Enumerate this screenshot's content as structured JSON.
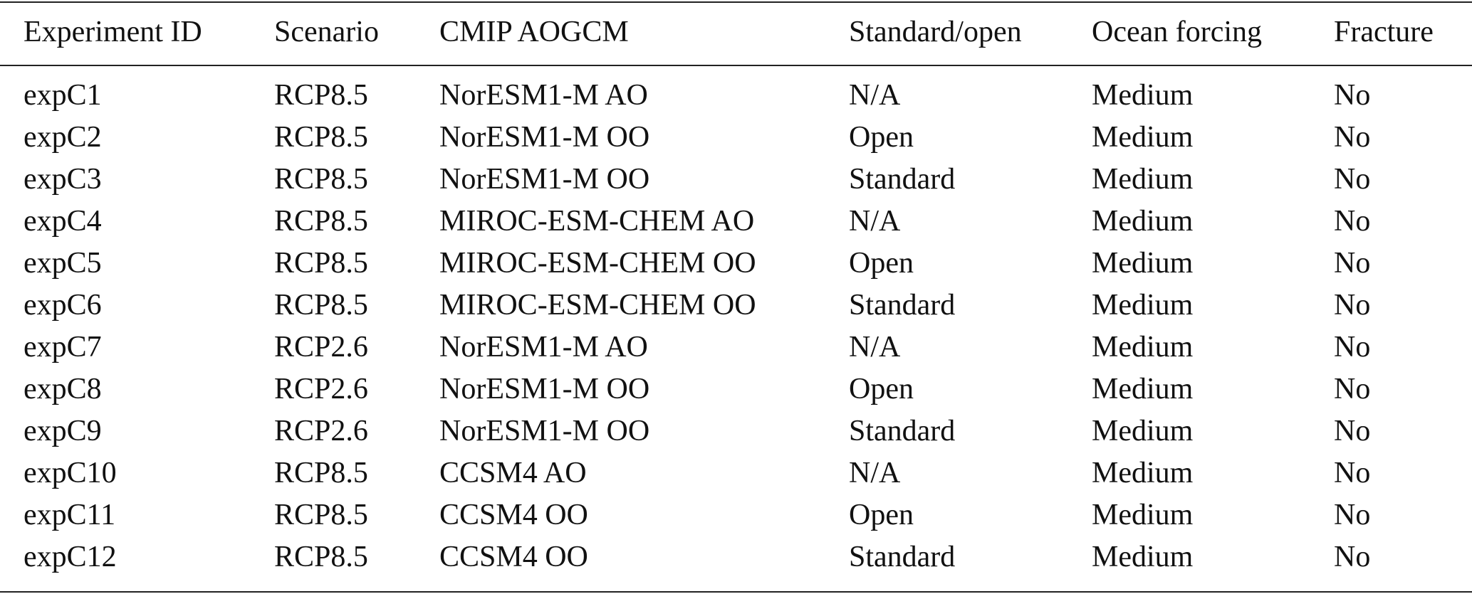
{
  "table": {
    "header": [
      "Experiment ID",
      "Scenario",
      "CMIP AOGCM",
      "Standard/open",
      "Ocean forcing",
      "Fracture"
    ],
    "rows": [
      [
        "expC1",
        "RCP8.5",
        "NorESM1-M AO",
        "N/A",
        "Medium",
        "No"
      ],
      [
        "expC2",
        "RCP8.5",
        "NorESM1-M OO",
        "Open",
        "Medium",
        "No"
      ],
      [
        "expC3",
        "RCP8.5",
        "NorESM1-M OO",
        "Standard",
        "Medium",
        "No"
      ],
      [
        "expC4",
        "RCP8.5",
        "MIROC-ESM-CHEM AO",
        "N/A",
        "Medium",
        "No"
      ],
      [
        "expC5",
        "RCP8.5",
        "MIROC-ESM-CHEM OO",
        "Open",
        "Medium",
        "No"
      ],
      [
        "expC6",
        "RCP8.5",
        "MIROC-ESM-CHEM OO",
        "Standard",
        "Medium",
        "No"
      ],
      [
        "expC7",
        "RCP2.6",
        "NorESM1-M AO",
        "N/A",
        "Medium",
        "No"
      ],
      [
        "expC8",
        "RCP2.6",
        "NorESM1-M OO",
        "Open",
        "Medium",
        "No"
      ],
      [
        "expC9",
        "RCP2.6",
        "NorESM1-M OO",
        "Standard",
        "Medium",
        "No"
      ],
      [
        "expC10",
        "RCP8.5",
        "CCSM4 AO",
        "N/A",
        "Medium",
        "No"
      ],
      [
        "expC11",
        "RCP8.5",
        "CCSM4 OO",
        "Open",
        "Medium",
        "No"
      ],
      [
        "expC12",
        "RCP8.5",
        "CCSM4 OO",
        "Standard",
        "Medium",
        "No"
      ]
    ]
  }
}
